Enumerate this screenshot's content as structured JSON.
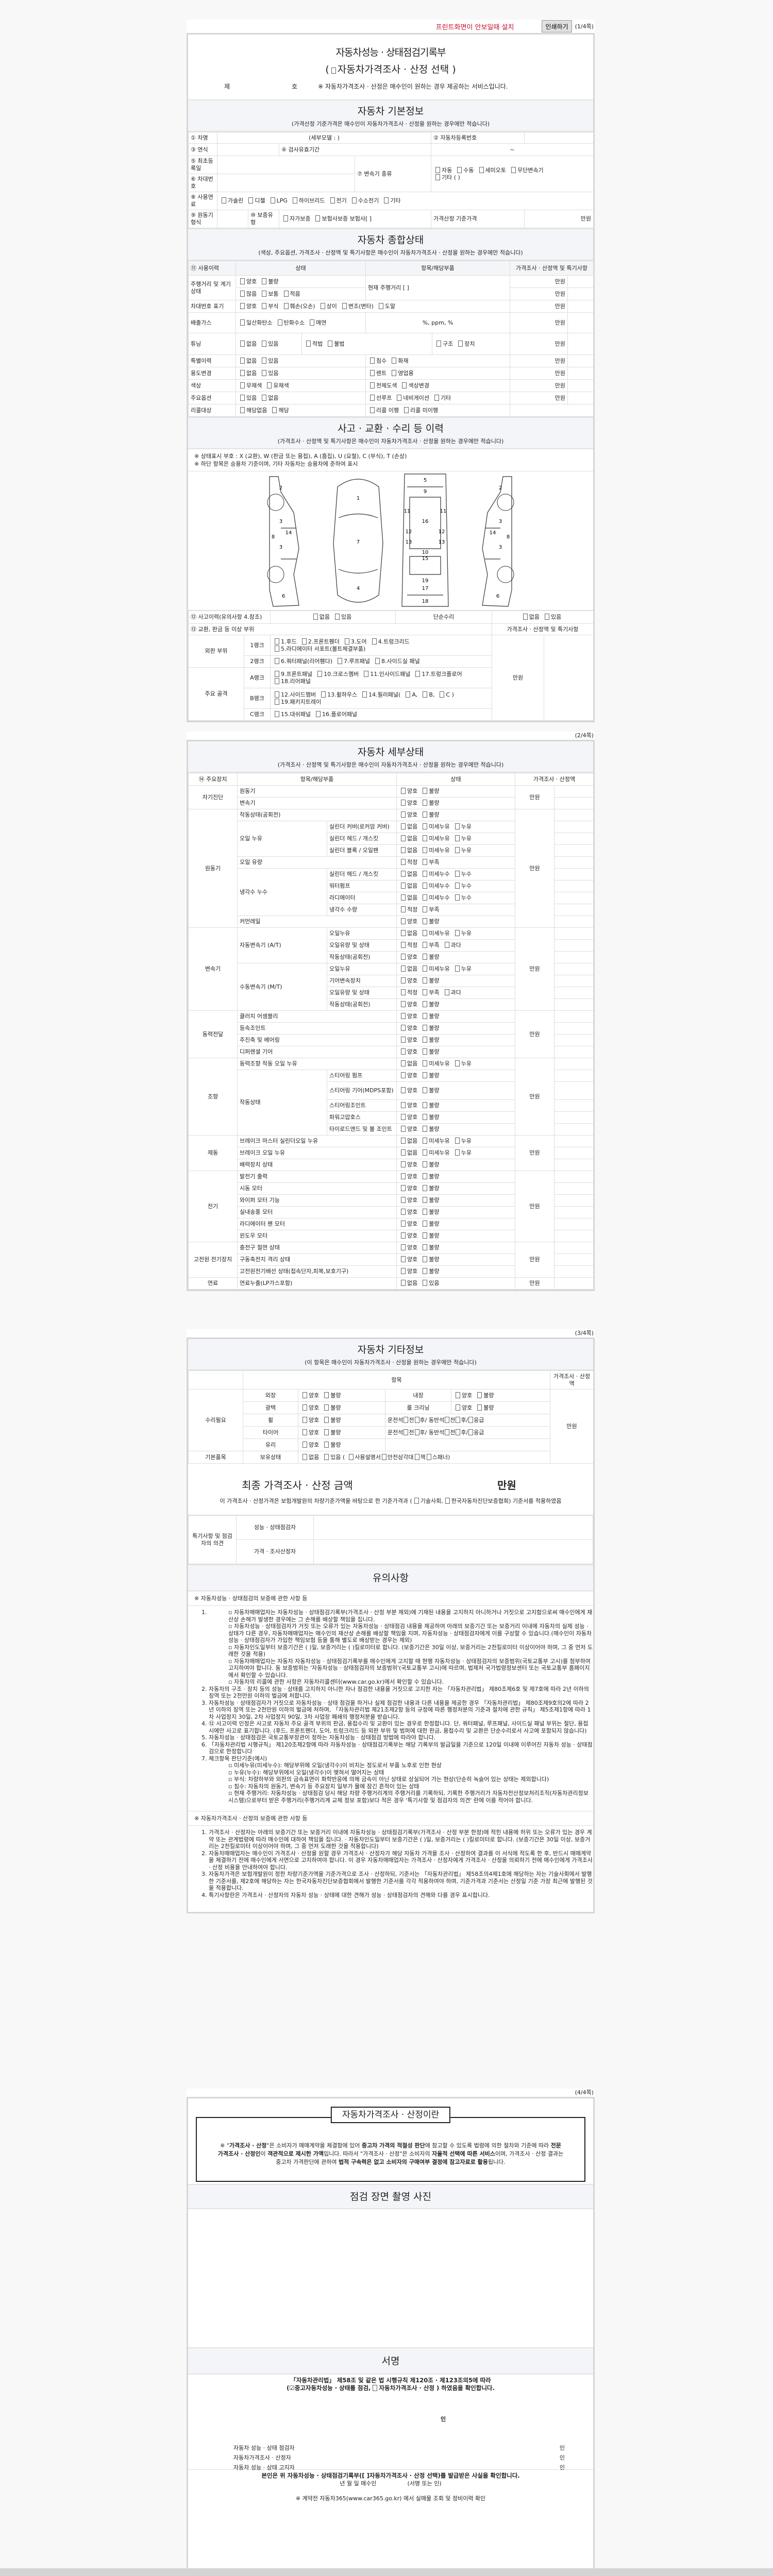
{
  "toolbar": {
    "print_notice": "프린트화면이 안보일때 설치",
    "print_button": "인쇄하기",
    "page": "(1/4쪽)"
  },
  "header": {
    "title": "자동차성능 · 상태점검기록부",
    "subtitle_open": "(",
    "subtitle": "자동차가격조사 · 산정 선택",
    "subtitle_close": ")",
    "no_prefix": "제",
    "no_suffix": "호",
    "notice": "※ 자동차가격조사 · 산정은 매수인이 원하는 경우 제공하는 서비스입니다."
  },
  "basic": {
    "title": "자동차 기본정보",
    "note": "(가격산정 기준가격은 매수인이 자동차가격조사 · 산정을 원하는 경우에만 적습니다)",
    "car_name": "① 차명",
    "detail_model": "(세부모델 :              )",
    "reg_no": "② 자동차등록번호",
    "year": "③ 연식",
    "inspection": "④ 검사유효기간",
    "tilde": "~",
    "first_reg": "⑤ 최초등록일",
    "vin": "⑥ 차대번호",
    "transmission": "⑦ 변속기 종류",
    "transmission_opts": [
      "자동",
      "수동",
      "세미오토",
      "무단변속기"
    ],
    "transmission_other": "기타 (          )",
    "fuel": "⑧ 사용연료",
    "fuel_opts": [
      "가솔린",
      "디젤",
      "LPG",
      "하이브리드",
      "전기",
      "수소전기",
      "기타"
    ],
    "engine": "⑨ 원동기형식",
    "warranty": "⑩ 보증유형",
    "warranty_opts": [
      "자가보증",
      "보험사보증 보험사[          ]"
    ],
    "base_price": "가격산정 기준가격",
    "unit": "만원"
  },
  "status": {
    "title": "자동차 종합상태",
    "note": "(색상, 주요옵션, 가격조사 · 산정액 및 특기사항은 매수인이 자동차가격조사 · 산정을 원하는 경우에만 적습니다)",
    "headers": [
      "⑪ 사용이력",
      "상태",
      "항목/해당부품",
      "가격조사 · 산정액 및 특기사항"
    ],
    "unit": "만원",
    "mileage": {
      "label": "주행거리 및 계기상태",
      "opts1": [
        "양호",
        "불량"
      ],
      "opts2": [
        "많음",
        "보통",
        "적음"
      ],
      "item": "현재 주행거리 [                ]"
    },
    "vin_mark": {
      "label": "차대번호 표기",
      "opts": [
        "양호",
        "부식",
        "훼손(오손)",
        "상이",
        "변조(변타)",
        "도말"
      ]
    },
    "exhaust": {
      "label": "배출가스",
      "opts": [
        "일산화탄소",
        "탄화수소",
        "매연"
      ],
      "item": "%,       ppm,       %"
    },
    "tuning": {
      "label": "튜닝",
      "opts": [
        "없음",
        "있음"
      ],
      "opts2": [
        "적법",
        "불법"
      ],
      "opts3": [
        "구조",
        "장치"
      ]
    },
    "rows": [
      {
        "label": "특별이력",
        "opts": [
          "없음",
          "있음"
        ],
        "items": [
          "침수",
          "화재"
        ],
        "price": true
      },
      {
        "label": "용도변경",
        "opts": [
          "없음",
          "있음"
        ],
        "items": [
          "렌트",
          "영업용"
        ],
        "price": true
      },
      {
        "label": "색상",
        "opts": [
          "무채색",
          "유채색"
        ],
        "items": [
          "전체도색",
          "색상변경"
        ],
        "price": true
      },
      {
        "label": "주요옵션",
        "opts": [
          "있음",
          "없음"
        ],
        "items": [
          "선루프",
          "네비게이션",
          "기타"
        ],
        "price": true
      },
      {
        "label": "리콜대상",
        "opts": [
          "해당없음",
          "해당"
        ],
        "items": [
          "리콜 이행",
          "리콜 미이행"
        ],
        "price": false
      }
    ]
  },
  "accident": {
    "title": "사고 · 교환 · 수리 등 이력",
    "note": "(가격조사 · 산정액 및 특기사항은 매수인이 자동차가격조사 · 산정을 원하는 경우에만 적습니다)",
    "legend1": "※ 상태표시 부호 : X (교환), W (판금 또는 용접), A (흠집), U (요철), C (부식), T (손상)",
    "legend2": "※ 하단 항목은 승용차 기준이며, 기타 자동차는 승용차에 준하여 표시",
    "history": "⑫ 사고이력(유의사항 4.참조)",
    "history_opts": [
      "없음",
      "있음"
    ],
    "simple_repair": "단순수리",
    "simple_opts": [
      "없음",
      "있음"
    ],
    "parts_label": "⑬ 교환, 판금 등 이상 부위",
    "price_label": "가격조사 · 산정액 및 특기사항",
    "unit": "만원",
    "groups": [
      {
        "name": "외판 부위",
        "ranks": [
          {
            "rank": "1랭크",
            "items": [
              "1.후드",
              "2.프론트휀더",
              "3.도어",
              "4.트렁크리드",
              "5.라디에이터 서포트(볼트체결부품)"
            ]
          },
          {
            "rank": "2랭크",
            "items": [
              "6.쿼터패널(리어휀다)",
              "7.루프패널",
              "8.사이드실 패널"
            ]
          }
        ]
      },
      {
        "name": "주요 골격",
        "ranks": [
          {
            "rank": "A랭크",
            "items": [
              "9.프론트패널",
              "10.크로스멤버",
              "11.인사이드패널",
              "17.트렁크플로어",
              "18.리어패널"
            ]
          },
          {
            "rank": "B랭크",
            "items": [
              "12.사이드멤버",
              "13.휠하우스",
              "14.필러패널(",
              "A,",
              "B,",
              "C )",
              "19.패키지트레이"
            ]
          },
          {
            "rank": "C랭크",
            "items": [
              "15.대쉬패널",
              "16.플로어패널"
            ]
          }
        ]
      }
    ],
    "diagram_numbers": [
      "1",
      "2",
      "3",
      "4",
      "5",
      "6",
      "7",
      "8",
      "9",
      "10",
      "11",
      "12",
      "13",
      "14",
      "15",
      "16",
      "17",
      "18",
      "19"
    ]
  },
  "detail": {
    "page": "(2/4쪽)",
    "title": "자동차 세부상태",
    "note": "(가격조사 · 산정액 및 특기사항은 매수인이 자동차가격조사 · 산정을 원하는 경우에만 적습니다)",
    "headers": [
      "⑭ 주요장치",
      "항목/해당부품",
      "상태",
      "가격조사 · 산정액"
    ],
    "unit": "만원",
    "groups": [
      {
        "name": "자기진단",
        "items": [
          {
            "label": "원동기",
            "opts": [
              "양호",
              "불량"
            ]
          },
          {
            "label": "변속기",
            "opts": [
              "양호",
              "불량"
            ]
          }
        ]
      },
      {
        "name": "원동기",
        "items": [
          {
            "label": "작동상태(공회전)",
            "opts": [
              "양호",
              "불량"
            ]
          },
          {
            "label": "오일 누유",
            "subs": [
              {
                "label": "실린더 커버(로커암 커버)",
                "opts": [
                  "없음",
                  "미세누유",
                  "누유"
                ]
              },
              {
                "label": "실린더 헤드 / 개스킷",
                "opts": [
                  "없음",
                  "미세누유",
                  "누유"
                ]
              },
              {
                "label": "실린더 블록 / 오일팬",
                "opts": [
                  "없음",
                  "미세누유",
                  "누유"
                ]
              }
            ]
          },
          {
            "label": "오일 유량",
            "opts": [
              "적정",
              "부족"
            ]
          },
          {
            "label": "냉각수 누수",
            "subs": [
              {
                "label": "실린더 헤드 / 개스킷",
                "opts": [
                  "없음",
                  "미세누수",
                  "누수"
                ]
              },
              {
                "label": "워터펌프",
                "opts": [
                  "없음",
                  "미세누수",
                  "누수"
                ]
              },
              {
                "label": "라디에이터",
                "opts": [
                  "없음",
                  "미세누수",
                  "누수"
                ]
              },
              {
                "label": "냉각수 수량",
                "opts": [
                  "적정",
                  "부족"
                ]
              }
            ]
          },
          {
            "label": "커먼레일",
            "opts": [
              "양호",
              "불량"
            ]
          }
        ]
      },
      {
        "name": "변속기",
        "items": [
          {
            "label": "자동변속기 (A/T)",
            "subs": [
              {
                "label": "오일누유",
                "opts": [
                  "없음",
                  "미세누유",
                  "누유"
                ]
              },
              {
                "label": "오일유량 및 상태",
                "opts": [
                  "적정",
                  "부족",
                  "과다"
                ]
              },
              {
                "label": "작동상태(공회전)",
                "opts": [
                  "양호",
                  "불량"
                ]
              }
            ]
          },
          {
            "label": "수동변속기 (M/T)",
            "subs": [
              {
                "label": "오일누유",
                "opts": [
                  "없음",
                  "미세누유",
                  "누유"
                ]
              },
              {
                "label": "기어변속장치",
                "opts": [
                  "양호",
                  "불량"
                ]
              },
              {
                "label": "오일유량 및 상태",
                "opts": [
                  "적정",
                  "부족",
                  "과다"
                ]
              },
              {
                "label": "작동상태(공회전)",
                "opts": [
                  "양호",
                  "불량"
                ]
              }
            ]
          }
        ]
      },
      {
        "name": "동력전달",
        "items": [
          {
            "label": "클러치 어셈블리",
            "opts": [
              "양호",
              "불량"
            ]
          },
          {
            "label": "등속조인트",
            "opts": [
              "양호",
              "불량"
            ]
          },
          {
            "label": "추진축 및 베어링",
            "opts": [
              "양호",
              "불량"
            ]
          },
          {
            "label": "디퍼렌셜 기어",
            "opts": [
              "양호",
              "불량"
            ]
          }
        ]
      },
      {
        "name": "조향",
        "items": [
          {
            "label": "동력조향 작동 오일 누유",
            "opts": [
              "없음",
              "미세누유",
              "누유"
            ]
          },
          {
            "label": "작동상태",
            "subs": [
              {
                "label": "스티어링 펌프",
                "opts": [
                  "양호",
                  "불량"
                ]
              },
              {
                "label": "스티어링 기어(MDPS포함)",
                "opts": [
                  "양호",
                  "불량"
                ]
              },
              {
                "label": "스티어링조인트",
                "opts": [
                  "양호",
                  "불량"
                ]
              },
              {
                "label": "파워고압호스",
                "opts": [
                  "양호",
                  "불량"
                ]
              },
              {
                "label": "타이로드엔드 및 볼 조인트",
                "opts": [
                  "양호",
                  "불량"
                ]
              }
            ]
          }
        ]
      },
      {
        "name": "제동",
        "items": [
          {
            "label": "브레이크 마스터 실린더오일 누유",
            "opts": [
              "없음",
              "미세누유",
              "누유"
            ]
          },
          {
            "label": "브레이크 오일 누유",
            "opts": [
              "없음",
              "미세누유",
              "누유"
            ]
          },
          {
            "label": "배력장치 상태",
            "opts": [
              "양호",
              "불량"
            ]
          }
        ]
      },
      {
        "name": "전기",
        "items": [
          {
            "label": "발전기 출력",
            "opts": [
              "양호",
              "불량"
            ]
          },
          {
            "label": "시동 모터",
            "opts": [
              "양호",
              "불량"
            ]
          },
          {
            "label": "와이퍼 모터 기능",
            "opts": [
              "양호",
              "불량"
            ]
          },
          {
            "label": "실내송풍 모터",
            "opts": [
              "양호",
              "불량"
            ]
          },
          {
            "label": "라디에이터 팬 모터",
            "opts": [
              "양호",
              "불량"
            ]
          },
          {
            "label": "윈도우 모터",
            "opts": [
              "양호",
              "불량"
            ]
          }
        ]
      },
      {
        "name": "고전원 전기장치",
        "items": [
          {
            "label": "충전구 절연 상태",
            "opts": [
              "양호",
              "불량"
            ]
          },
          {
            "label": "구동축전지 격리 상태",
            "opts": [
              "양호",
              "불량"
            ]
          },
          {
            "label": "고전원전기배선 상태(접속단자,피복,보호기구)",
            "opts": [
              "양호",
              "불량"
            ]
          }
        ]
      },
      {
        "name": "연료",
        "items": [
          {
            "label": "연료누출(LP가스포함)",
            "opts": [
              "없음",
              "있음"
            ]
          }
        ]
      }
    ]
  },
  "other": {
    "page": "(3/4쪽)",
    "title": "자동차 기타정보",
    "note": "(이 항목은 매수인이 자동차가격조사 · 산정을 원하는 경우에만 적습니다)",
    "col_item": "항목",
    "col_price": "가격조사 · 산정액",
    "unit": "만원",
    "repair": "수리필요",
    "basic_items": "기본품목",
    "rows": [
      {
        "label": "외장",
        "opts": [
          "양호",
          "불량"
        ],
        "label2": "내장",
        "opts2": [
          "양호",
          "불량"
        ]
      },
      {
        "label": "광택",
        "opts": [
          "양호",
          "불량"
        ],
        "label2": "룸 크리닝",
        "opts2": [
          "양호",
          "불량"
        ]
      },
      {
        "label": "휠",
        "opts": [
          "양호",
          "불량"
        ],
        "pos": [
          "운전석",
          "전",
          "후",
          "/ 동반석",
          "전",
          "후",
          "/",
          "응급"
        ]
      },
      {
        "label": "타이어",
        "opts": [
          "양호",
          "불량"
        ],
        "pos": [
          "운전석",
          "전",
          "후",
          "/ 동반석",
          "전",
          "후",
          "/",
          "응급"
        ]
      },
      {
        "label": "유리",
        "opts": [
          "양호",
          "불량"
        ]
      }
    ],
    "hold_label": "보유상태",
    "hold_opts": [
      "없음",
      "있음 ("
    ],
    "hold_items": [
      "사용설명서",
      "안전삼각대",
      "잭",
      "스패너"
    ],
    "hold_close": ")",
    "final_label": "최종 가격조사 · 산정 금액",
    "final_unit": "만원",
    "statement_a": "이 가격조사 · 산정가격은 보험개발원의 차량기준가액을 바탕으로 한 기준가격과 (",
    "statement_b": "기술사회,",
    "statement_c": "한국자동차진단보증협회) 기준서를 적용하였음",
    "opinion_label": "특기사항 및 점검자의 의견",
    "opinion_rows": [
      "성능 · 상태점검자",
      "가격 · 조사산정자"
    ]
  },
  "caution": {
    "title": "유의사항",
    "h1": "※ 자동차성능 · 상태점검의 보증에 관한 사항 등",
    "n1_bullets": [
      "자동차매매업자는 자동차성능 · 상태점검기록부(가격조사 · 산정 부분 제외)에 기재된 내용을 고지하지 아니하거나 거짓으로 고지함으로써 매수인에게 재산상 손해가 발생한 경우에는 그 손해를 배상할 책임을 집니다.",
      "자동차성능 · 상태점검자가 거짓 또는 오류가 있는 자동차성능 · 상태점검 내용을 제공하여 아래의 보증기간 또는 보증거리 이내에 자동차의 실제 성능 · 상태가 다른 경우, 자동차매매업자는 매수인의 재산상 손해를 배상할 책임을 지며, 자동차성능 · 상태점검자에게 이를 구상할 수 있습니다.(매수인이 자동차성능 · 상태점검자가 가입한 책임보험 등을 통해 별도로 배상받는 경우는 제외)",
      "자동차인도일부터 보증기간은 (      )일, 보증거리는 (      )킬로미터로 합니다. (보증기간은 30일 이상, 보증거리는 2천킬로미터 이상이어야 하며, 그 중 먼저 도래한 것을 적용)",
      "자동차매매업자는 자동차 자동차성능 · 상태점검기록부를 매수인에게 고지할 때 현행 자동차성능 · 상태점검자의 보증범위(국토교통부 고시)를 첨부하여 고지하여야 합니다. 동 보증범위는 '자동차성능 · 상태점검자의 보증범위'(국토교통부 고시)에 따르며, 법제처 국가법령정보센터 또는 국토교통부 홈페이지에서 확인할 수 있습니다.",
      "자동차의 리콜에 관한 사항은 자동차리콜센터(www.car.go.kr)에서 확인할 수 있습니다."
    ],
    "items": [
      "자동차의 구조 · 장치 등의 성능 · 상태를 고지하지 아니한 자나 점검한 내용을 거짓으로 고지한 자는 「자동차관리법」 제80조제6호 및 제7호에 따라 2년 이하의 징역 또는 2천만원 이하의 벌금에 처합니다.",
      "자동차성능 · 상태점검자가 거짓으로 자동차성능 · 상태 점검을 하거나 실제 점검한 내용과 다른 내용을 제공한 경우 「자동차관리법」 제80조제9호의2에 따라 2년 이하의 징역 또는 2천만원 이하의 벌금에 처하며, 「자동차관리법 제21조제2항 등의 규정에 따른 행정처분의 기준과 절차에 관한 규칙」 제5조제1항에 따라 1차 사업정지 30일, 2차 사업정지 90일, 3차 사업장 폐쇄의 행정처분을 받습니다.",
      "⑫ 사고이력 인정은 사고로 자동차 주요 골격 부위의 판금, 용접수리 및 교환이 있는 경우로 한정합니다. 단, 쿼터패널, 루프패널, 사이드실 패널 부위는 절단, 용접 시에만 사고로 표기합니다. (후드, 프론트펜더, 도어, 트렁크리드 등 외판 부위 및 범퍼에 대한 판금, 용접수리 및 교환은 단순수리로서 사고에 포함되지 않습니다)",
      "자동차성능 · 상태점검은 국토교통부장관이 정하는 자동차성능 · 상태점검 방법에 따라야 합니다.",
      "「자동차관리법 시행규칙」 제120조제2항에 따라 자동차성능 · 상태점검기록부는 해당 기록부의 발급일을 기준으로 120일 이내에 이루어진 자동차 성능 · 상태점검으로 한정합니다",
      "체크항목 판단기준(예시)"
    ],
    "n7_bullets": [
      "미세누유(미세누수): 해당부위에 오일(냉각수)이 비치는 정도로서 부품 노후로 인한 현상",
      "누유(누수): 해당부위에서 오일(냉각수)이 맺혀서 떨어지는 상태",
      "부식: 차량하부와 외판의 금속표면이 화학반응에 의해 금속이 아닌 상태로 상실되어 가는 현상(단순히 녹슬어 있는 상태는 제외합니다)",
      "침수: 자동차의 원동기, 변속기 등 주요장치 일부가 물에 잠긴 흔적이 있는 상태",
      "현재 주행거리: 자동차성능 · 상태점검 당시 해당 차량 주행거리계의 주행거리를 기록하되, 기록한 주행거리가 자동차전산정보처리조직(자동차관리정보시스템)으로부터 받은 주행거리(주행거리계 교체 정보 포함)보다 적은 경우 '특기사항 및 점검자의 의견' 란에 이를 적어야 합니다."
    ],
    "h2": "※ 자동차가격조사 · 산정의 보증에 관한 사항 등",
    "items2": [
      "가격조사 · 산정자는 아래의 보증기간 또는 보증거리 이내에 자동차성능 · 상태점검기록부(가격조사 · 산정 부분 한정)에 적힌 내용에 허위 또는 오류가 있는 경우 계약 또는 관계법령에 따라 매수인에 대하여 책임을 집니다. · 자동차인도일부터 보증기간은 (      )일, 보증거리는 (      )킬로미터로 합니다. (보증기간은 30일 이상, 보증거리는 2천킬로미터 이상이어야 하며, 그 중 먼저 도래한 것을 적용합니다)",
      "자동차매매업자는 매수인이 가격조사 · 산정을 원할 경우 가격조사 · 산정자가 해당 자동차 가격을 조사 · 산정하여 결과를 이 서식에 적도록 한 후, 반드시 매매계약을 체결하기 전에 매수인에게 서면으로 고지하여야 합니다. 이 경우 자동차매매업자는 가격조사 · 산정자에게 가격조사 · 산정을 의뢰하기 전에 매수인에게 가격조사 · 산정 비용을 안내하여야 합니다.",
      "자동차가격은 보험개발원이 정한 차량기준가액을 기준가격으로 조사 · 산정하되, 기준서는 「자동차관리법」 제58조의4제1호에 해당하는 자는 기술사회에서 발행한 기준서를, 제2호에 해당하는 자는 한국자동차진단보증협회에서 발행한 기준서를 각각 적용하여야 하며, 기준가격과 기준서는 산정일 기준 가장 최근에 발행된 것을 적용합니다.",
      "특기사항란은 가격조사 · 산정자의 자동차 성능 · 상태에 대한 견해가 성능 · 상태점검자의 견해와 다를 경우 표시합니다."
    ]
  },
  "page4": {
    "page": "(4/4쪽)",
    "box_title": "자동차가격조사 · 산정이란",
    "box_text": [
      {
        "t": "※ \"",
        "b": false
      },
      {
        "t": "가격조사 · 산정",
        "b": true
      },
      {
        "t": "\"은 소비자가 매매계약을 체결함에 있어 ",
        "b": false
      },
      {
        "t": "중고차 가격의 적절성 판단",
        "b": true
      },
      {
        "t": "에 참고할 수 있도록 법령에 의한 절차와 기준에 따라 ",
        "b": false
      },
      {
        "t": "전문 가격조사 · 산정인",
        "b": true
      },
      {
        "t": "이 ",
        "b": false
      },
      {
        "t": "객관적으로 제시한 가액",
        "b": true
      },
      {
        "t": "입니다. 따라서 \"가격조사 · 산정\"은 소비자의 ",
        "b": false
      },
      {
        "t": "자율적 선택에 따른 서비스",
        "b": true
      },
      {
        "t": "이며, 가격조사 · 산정 결과는 중고차 가격판단에 관하여 ",
        "b": false
      },
      {
        "t": "법적 구속력은 없고 소비자의 구매여부 결정에 참고자료로 활용",
        "b": true
      },
      {
        "t": "됩니다.",
        "b": false
      }
    ],
    "photo_title": "점검 장면 촬영 사진",
    "sign_title": "서명",
    "law_line": "「자동차관리법」 제58조 및 같은 법 시행규칙 제120조 · 제123조의5에 따라",
    "confirm_a": "(",
    "confirm_b": "중고자동차성능 · 상태를 점검,",
    "confirm_c": "자동차가격조사  ·  산정 ) 하였음을 확인합니다.",
    "seal": "인",
    "signers": [
      "자동차 성능 · 상태 점검자",
      "자동차가격조사  ·  산정자",
      "자동차 성능 · 상태 고지자"
    ],
    "receipt": "본인은 위 자동차성능  ·  상태점검기록부([   ]자동차가격조사  ·  산정 선택)를 발급받은 사실을 확인합니다.",
    "date_line": "년     월     일      매수인",
    "sign_or_seal": "(서명 또는 인)",
    "footer": "※ 계약전 자동차365(www.car365.go.kr) 에서 실매물 조회 및 정비이력 확인"
  },
  "colors": {
    "accent_red": "#c8102e",
    "section_bg": "#f3f5f8",
    "border": "#dddddd"
  }
}
